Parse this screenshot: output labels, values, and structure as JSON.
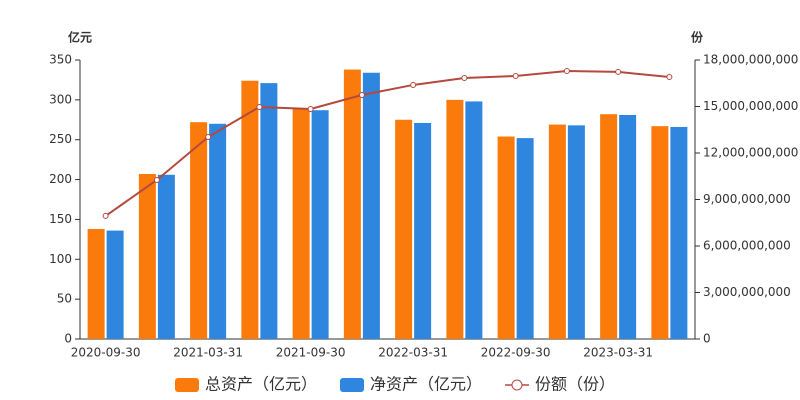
{
  "chart_data": {
    "type": "bar_line",
    "y_label": "亿元",
    "y2_label": "份",
    "categories": [
      "2020-09-30",
      null,
      "2021-03-31",
      null,
      "2021-09-30",
      null,
      "2022-03-31",
      null,
      "2022-09-30",
      null,
      "2023-03-31",
      null
    ],
    "series": [
      {
        "name": "总资产（亿元）",
        "type": "bar",
        "color": "#fa7a0c",
        "values": [
          138,
          207,
          272,
          324,
          289,
          338,
          275,
          300,
          254,
          269,
          282,
          267
        ]
      },
      {
        "name": "净资产（亿元）",
        "type": "bar",
        "color": "#2e86de",
        "values": [
          136,
          206,
          270,
          321,
          287,
          334,
          271,
          298,
          252,
          268,
          281,
          266
        ]
      },
      {
        "name": "份额（份）",
        "type": "line",
        "axis": "y2",
        "color": "#b5493e",
        "values": [
          7940000000,
          10260000000,
          13030000000,
          14970000000,
          14840000000,
          15740000000,
          16390000000,
          16840000000,
          16970000000,
          17290000000,
          17230000000,
          16900000000
        ]
      }
    ],
    "ylim": [
      0,
      350
    ],
    "yticks": [
      0,
      50,
      100,
      150,
      200,
      250,
      300,
      350
    ],
    "y2lim": [
      0,
      18000000000
    ],
    "y2ticks": [
      0,
      {
        "value": 3000000000,
        "label": "3,000,000,000"
      },
      {
        "value": 6000000000,
        "label": "6,000,000,000"
      },
      {
        "value": 9000000000,
        "label": "9,000,000,000"
      },
      {
        "value": 12000000000,
        "label": "12,000,000,000"
      },
      {
        "value": 15000000000,
        "label": "15,000,000,000"
      },
      {
        "value": 18000000000,
        "label": "18,000,000,000"
      }
    ],
    "grid": false
  }
}
